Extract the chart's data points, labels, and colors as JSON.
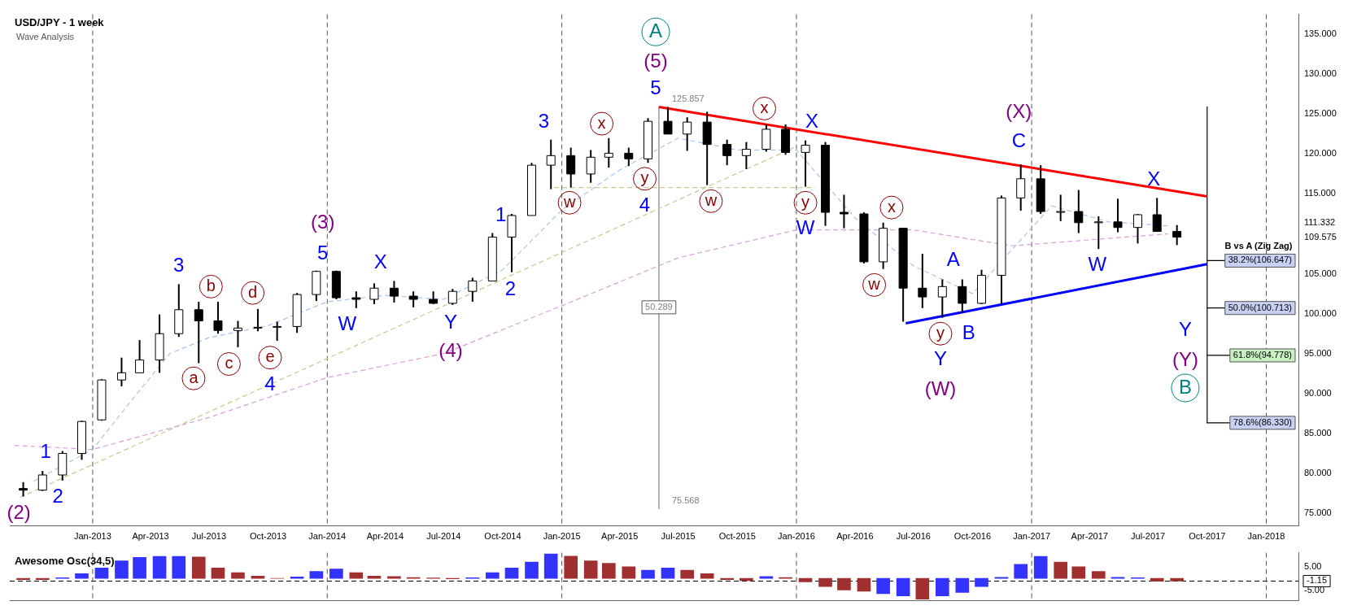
{
  "chart_data": [
    {
      "type": "candlestick",
      "title": "USD/JPY - 1 week",
      "subtitle": "Wave Analysis",
      "xlim": [
        "2012-08-25",
        "2018-02-20"
      ],
      "ylim": [
        73.4,
        137.5
      ],
      "xticks": [
        {
          "value": "2013-01-01",
          "label": "Jan-2013"
        },
        {
          "value": "2013-04-01",
          "label": "Apr-2013"
        },
        {
          "value": "2013-07-01",
          "label": "Jul-2013"
        },
        {
          "value": "2013-10-01",
          "label": "Oct-2013"
        },
        {
          "value": "2014-01-01",
          "label": "Jan-2014"
        },
        {
          "value": "2014-04-01",
          "label": "Apr-2014"
        },
        {
          "value": "2014-07-01",
          "label": "Jul-2014"
        },
        {
          "value": "2014-10-01",
          "label": "Oct-2014"
        },
        {
          "value": "2015-01-01",
          "label": "Jan-2015"
        },
        {
          "value": "2015-04-01",
          "label": "Apr-2015"
        },
        {
          "value": "2015-07-01",
          "label": "Jul-2015"
        },
        {
          "value": "2015-10-01",
          "label": "Oct-2015"
        },
        {
          "value": "2016-01-01",
          "label": "Jan-2016"
        },
        {
          "value": "2016-04-01",
          "label": "Apr-2016"
        },
        {
          "value": "2016-07-01",
          "label": "Jul-2016"
        },
        {
          "value": "2016-10-01",
          "label": "Oct-2016"
        },
        {
          "value": "2017-01-01",
          "label": "Jan-2017"
        },
        {
          "value": "2017-04-01",
          "label": "Apr-2017"
        },
        {
          "value": "2017-07-01",
          "label": "Jul-2017"
        },
        {
          "value": "2017-10-01",
          "label": "Oct-2017"
        },
        {
          "value": "2018-01-01",
          "label": "Jan-2018"
        }
      ],
      "yticks": [
        {
          "value": 75,
          "label": "75.000"
        },
        {
          "value": 80,
          "label": "80.000"
        },
        {
          "value": 85,
          "label": "85.000"
        },
        {
          "value": 90,
          "label": "90.000"
        },
        {
          "value": 95,
          "label": "95.000"
        },
        {
          "value": 100,
          "label": "100.000"
        },
        {
          "value": 105,
          "label": "105.000"
        },
        {
          "value": 109.575,
          "label": "109.575"
        },
        {
          "value": 111.332,
          "label": "111.332"
        },
        {
          "value": 115,
          "label": "115.000"
        },
        {
          "value": 120,
          "label": "120.000"
        },
        {
          "value": 125,
          "label": "125.000"
        },
        {
          "value": 130,
          "label": "130.000"
        },
        {
          "value": 135,
          "label": "135.000"
        }
      ],
      "grid": false,
      "legend": false,
      "marker": "none",
      "series": [
        {
          "type": "candlestick",
          "x": [
            "2012-09-15",
            "2012-10-15",
            "2012-11-15",
            "2012-12-15",
            "2013-01-15",
            "2013-02-15",
            "2013-03-15",
            "2013-04-15",
            "2013-05-15",
            "2013-06-15",
            "2013-07-15",
            "2013-08-15",
            "2013-09-15",
            "2013-10-15",
            "2013-11-15",
            "2013-12-15",
            "2014-01-15",
            "2014-02-15",
            "2014-03-15",
            "2014-04-15",
            "2014-05-15",
            "2014-06-15",
            "2014-07-15",
            "2014-08-15",
            "2014-09-15",
            "2014-10-15",
            "2014-11-15",
            "2014-12-15",
            "2015-01-15",
            "2015-02-15",
            "2015-03-15",
            "2015-04-15",
            "2015-05-15",
            "2015-06-15",
            "2015-07-15",
            "2015-08-15",
            "2015-09-15",
            "2015-10-15",
            "2015-11-15",
            "2015-12-15",
            "2016-01-15",
            "2016-02-15",
            "2016-03-15",
            "2016-04-15",
            "2016-05-15",
            "2016-06-15",
            "2016-07-15",
            "2016-08-15",
            "2016-09-15",
            "2016-10-15",
            "2016-11-15",
            "2016-12-15",
            "2017-01-15",
            "2017-02-15",
            "2017-03-15",
            "2017-04-15",
            "2017-05-15",
            "2017-06-15",
            "2017-07-15",
            "2017-08-15"
          ],
          "colors": [
            "#000000",
            "#ffffff",
            "#ffffff",
            "#ffffff",
            "#ffffff",
            "#ffffff",
            "#ffffff",
            "#ffffff",
            "#ffffff",
            "#000000",
            "#000000",
            "#ffffff",
            "#ffffff",
            "#ffffff",
            "#ffffff",
            "#ffffff",
            "#000000",
            "#000000",
            "#ffffff",
            "#000000",
            "#000000",
            "#000000",
            "#ffffff",
            "#ffffff",
            "#ffffff",
            "#ffffff",
            "#ffffff",
            "#ffffff",
            "#000000",
            "#ffffff",
            "#ffffff",
            "#000000",
            "#ffffff",
            "#000000",
            "#ffffff",
            "#000000",
            "#000000",
            "#ffffff",
            "#ffffff",
            "#000000",
            "#ffffff",
            "#000000",
            "#000000",
            "#000000",
            "#ffffff",
            "#000000",
            "#000000",
            "#ffffff",
            "#000000",
            "#ffffff",
            "#ffffff",
            "#ffffff",
            "#000000",
            "#ffffff",
            "#000000",
            "#ffffff",
            "#000000",
            "#ffffff",
            "#000000",
            "#000000"
          ],
          "ohlc": [
            [
              78.1,
              78.9,
              77.1,
              77.9
            ],
            [
              77.9,
              80.3,
              77.8,
              79.8
            ],
            [
              79.8,
              82.8,
              79.1,
              82.5
            ],
            [
              82.5,
              86.6,
              81.7,
              86.5
            ],
            [
              86.7,
              91.8,
              86.6,
              91.7
            ],
            [
              91.7,
              94.5,
              90.9,
              92.6
            ],
            [
              92.6,
              96.7,
              92.6,
              94.2
            ],
            [
              94.2,
              99.9,
              92.6,
              97.5
            ],
            [
              97.5,
              103.7,
              97.1,
              100.5
            ],
            [
              100.5,
              101.5,
              93.8,
              99.1
            ],
            [
              99.1,
              101.5,
              97.5,
              97.9
            ],
            [
              97.9,
              99.1,
              95.8,
              98.2
            ],
            [
              98.2,
              100.6,
              97.8,
              98.3
            ],
            [
              98.3,
              99.0,
              96.6,
              98.4
            ],
            [
              98.4,
              102.6,
              97.6,
              102.4
            ],
            [
              102.4,
              105.4,
              101.6,
              105.3
            ],
            [
              105.3,
              105.4,
              101.8,
              102.0
            ],
            [
              102.0,
              102.8,
              100.7,
              101.8
            ],
            [
              101.8,
              103.8,
              101.2,
              103.2
            ],
            [
              103.2,
              104.1,
              101.4,
              102.2
            ],
            [
              102.2,
              102.8,
              100.8,
              101.8
            ],
            [
              101.8,
              102.8,
              101.2,
              101.3
            ],
            [
              101.3,
              103.1,
              101.1,
              102.8
            ],
            [
              102.8,
              104.5,
              101.5,
              104.1
            ],
            [
              104.1,
              110.1,
              104.1,
              109.6
            ],
            [
              109.6,
              112.5,
              105.2,
              112.3
            ],
            [
              112.3,
              118.9,
              112.3,
              118.6
            ],
            [
              118.6,
              121.8,
              115.6,
              119.8
            ],
            [
              119.8,
              120.8,
              115.8,
              117.5
            ],
            [
              117.5,
              120.5,
              116.4,
              119.6
            ],
            [
              119.6,
              122.0,
              118.3,
              120.1
            ],
            [
              120.1,
              120.8,
              118.5,
              119.4
            ],
            [
              119.4,
              124.5,
              118.9,
              124.1
            ],
            [
              124.1,
              125.9,
              122.5,
              122.5
            ],
            [
              122.5,
              124.6,
              120.4,
              124.0
            ],
            [
              124.0,
              125.3,
              116.1,
              121.2
            ],
            [
              121.2,
              121.8,
              118.6,
              119.8
            ],
            [
              119.8,
              121.5,
              118.1,
              120.6
            ],
            [
              120.6,
              123.7,
              120.3,
              123.1
            ],
            [
              123.1,
              123.7,
              119.9,
              120.2
            ],
            [
              120.2,
              121.7,
              115.9,
              121.1
            ],
            [
              121.1,
              121.5,
              111.0,
              112.7
            ],
            [
              112.7,
              114.9,
              110.7,
              112.5
            ],
            [
              112.5,
              112.7,
              106.3,
              106.5
            ],
            [
              106.5,
              111.4,
              105.6,
              110.7
            ],
            [
              110.7,
              110.7,
              99.0,
              103.2
            ],
            [
              103.2,
              107.5,
              100.7,
              102.1
            ],
            [
              102.1,
              104.3,
              99.5,
              103.4
            ],
            [
              103.4,
              104.3,
              100.1,
              101.3
            ],
            [
              101.3,
              105.5,
              101.2,
              104.8
            ],
            [
              104.8,
              114.8,
              101.2,
              114.5
            ],
            [
              114.5,
              118.7,
              112.9,
              116.9
            ],
            [
              116.9,
              118.6,
              112.5,
              112.8
            ],
            [
              112.8,
              114.9,
              111.6,
              112.8
            ],
            [
              112.8,
              115.5,
              110.1,
              111.4
            ],
            [
              111.4,
              112.2,
              108.1,
              111.5
            ],
            [
              111.5,
              114.4,
              110.2,
              110.8
            ],
            [
              110.8,
              112.5,
              108.8,
              112.4
            ],
            [
              112.4,
              114.5,
              110.3,
              110.3
            ],
            [
              110.3,
              111.1,
              108.6,
              109.6
            ]
          ]
        },
        {
          "type": "line",
          "color": "#aac4f0",
          "line_style": "dashed",
          "x": [
            "2012-10-01",
            "2013-01-01",
            "2013-03-01",
            "2013-05-01",
            "2013-07-01",
            "2013-10-01",
            "2014-01-01",
            "2014-04-01",
            "2014-07-01",
            "2014-10-01",
            "2015-01-01",
            "2015-04-01",
            "2015-07-01",
            "2015-10-01",
            "2016-01-01",
            "2016-04-01",
            "2016-07-01",
            "2016-10-01",
            "2016-12-01",
            "2017-02-01",
            "2017-05-01",
            "2017-08-01"
          ],
          "values": [
            79,
            83,
            89,
            95,
            97,
            98.5,
            101.5,
            102.3,
            101.8,
            105.5,
            113,
            118,
            122,
            120.5,
            120.5,
            112,
            106,
            102.5,
            108,
            113.5,
            111.5,
            111
          ]
        },
        {
          "type": "line",
          "color": "#d8a0d8",
          "line_style": "dashed",
          "x": [
            "2012-09-01",
            "2013-01-01",
            "2013-07-01",
            "2014-01-01",
            "2014-07-01",
            "2015-01-01",
            "2015-07-01",
            "2016-01-01",
            "2016-07-01",
            "2016-12-01",
            "2017-08-01"
          ],
          "values": [
            83.5,
            83,
            87,
            92,
            95,
            101,
            107,
            110.5,
            110.5,
            108.5,
            110
          ]
        },
        {
          "type": "line",
          "color": "#c8c890",
          "line_style": "dashed",
          "x": [
            "2012-09-10",
            "2015-12-28"
          ],
          "values": [
            77,
            120.8
          ]
        },
        {
          "type": "line",
          "color": "#c8c890",
          "line_style": "dashed",
          "x": [
            "2014-12-20",
            "2016-01-30"
          ],
          "values": [
            115.8,
            115.8
          ]
        },
        {
          "type": "line",
          "color": "#ff0000",
          "line_style": "solid",
          "x": [
            "2015-06-01",
            "2017-10-01"
          ],
          "values": [
            125.9,
            114.7
          ]
        },
        {
          "type": "line",
          "color": "#0000ff",
          "line_style": "solid",
          "x": [
            "2016-06-19",
            "2017-10-01"
          ],
          "values": [
            98.8,
            106.2
          ]
        },
        {
          "type": "line",
          "color": "#808080",
          "line_style": "solid",
          "x": [
            "2015-06-01",
            "2015-06-01"
          ],
          "values": [
            125.857,
            75.568
          ]
        },
        {
          "type": "line",
          "color": "#000000",
          "line_style": "solid",
          "x": [
            "2017-10-01",
            "2017-10-01"
          ],
          "values": [
            125.9,
            86.33
          ]
        },
        {
          "type": "line",
          "color": "#000000",
          "line_style": "solid",
          "x": [
            "2017-10-01",
            "2017-11-25"
          ],
          "values": [
            106.647,
            106.647
          ]
        },
        {
          "type": "line",
          "color": "#000000",
          "line_style": "solid",
          "x": [
            "2017-10-01",
            "2017-11-25"
          ],
          "values": [
            100.713,
            100.713
          ]
        },
        {
          "type": "line",
          "color": "#000000",
          "line_style": "solid",
          "x": [
            "2017-10-01",
            "2017-11-25"
          ],
          "values": [
            94.778,
            94.778
          ]
        },
        {
          "type": "line",
          "color": "#000000",
          "line_style": "solid",
          "x": [
            "2017-10-01",
            "2017-11-25"
          ],
          "values": [
            86.33,
            86.33
          ]
        }
      ],
      "ref_lines": [
        {
          "axis": "x",
          "value": "2013-01-01",
          "color": "#555555",
          "line_style": "dashed"
        },
        {
          "axis": "x",
          "value": "2014-01-01",
          "color": "#555555",
          "line_style": "dashed"
        },
        {
          "axis": "x",
          "value": "2015-01-01",
          "color": "#555555",
          "line_style": "dashed"
        },
        {
          "axis": "x",
          "value": "2016-01-01",
          "color": "#555555",
          "line_style": "dashed"
        },
        {
          "axis": "x",
          "value": "2017-01-01",
          "color": "#555555",
          "line_style": "dashed"
        },
        {
          "axis": "x",
          "value": "2018-01-01",
          "color": "#555555",
          "line_style": "dashed"
        }
      ],
      "annotations": [
        "(2)",
        "1",
        "2",
        "3",
        "a",
        "b",
        "c",
        "d",
        "e",
        "4",
        "5",
        "(3)",
        "W",
        "X",
        "Y",
        "(4)",
        "1",
        "2",
        "3",
        "w",
        "x",
        "y",
        "4",
        "5",
        "(5)",
        "A",
        "w",
        "x",
        "X",
        "y",
        "W",
        "w",
        "x",
        "A",
        "y",
        "B",
        "Y",
        "(W)",
        "C",
        "(X)",
        "W",
        "X",
        "Y",
        "(Y)",
        "B",
        "50.289",
        "B vs A (Zig Zag)",
        {
          "text": "125.857",
          "x": "2015-06-01",
          "y": 125.857
        },
        {
          "text": "75.568",
          "x": "2015-06-01",
          "y": 75.568
        },
        {
          "text": "38.2%(106.647)",
          "x": "2017-11-25",
          "y": 106.647
        },
        {
          "text": "50.0%(100.713)",
          "x": "2017-11-25",
          "y": 100.713
        },
        {
          "text": "61.8%(94.778)",
          "x": "2017-11-25",
          "y": 94.778
        },
        {
          "text": "78.6%(86.330)",
          "x": "2017-11-25",
          "y": 86.33
        }
      ]
    },
    {
      "type": "bar",
      "title": "Awesome Osc(34,5)",
      "tick_labels": "y",
      "legend": false,
      "grid": false,
      "xlim": [
        "2012-08-25",
        "2018-02-20"
      ],
      "ylim": [
        -9.5,
        11
      ],
      "yticks": [
        {
          "value": 5,
          "label": "5.00"
        },
        {
          "value": -5,
          "label": "-5.00"
        }
      ],
      "x": [
        "2012-09-15",
        "2012-10-15",
        "2012-11-15",
        "2012-12-15",
        "2013-01-15",
        "2013-02-15",
        "2013-03-15",
        "2013-04-15",
        "2013-05-15",
        "2013-06-15",
        "2013-07-15",
        "2013-08-15",
        "2013-09-15",
        "2013-10-15",
        "2013-11-15",
        "2013-12-15",
        "2014-01-15",
        "2014-02-15",
        "2014-03-15",
        "2014-04-15",
        "2014-05-15",
        "2014-06-15",
        "2014-07-15",
        "2014-08-15",
        "2014-09-15",
        "2014-10-15",
        "2014-11-15",
        "2014-12-15",
        "2015-01-15",
        "2015-02-15",
        "2015-03-15",
        "2015-04-15",
        "2015-05-15",
        "2015-06-15",
        "2015-07-15",
        "2015-08-15",
        "2015-09-15",
        "2015-10-15",
        "2015-11-15",
        "2015-12-15",
        "2016-01-15",
        "2016-02-15",
        "2016-03-15",
        "2016-04-15",
        "2016-05-15",
        "2016-06-15",
        "2016-07-15",
        "2016-08-15",
        "2016-09-15",
        "2016-10-15",
        "2016-11-15",
        "2016-12-15",
        "2017-01-15",
        "2017-02-15",
        "2017-03-15",
        "2017-04-15",
        "2017-05-15",
        "2017-06-15",
        "2017-07-15",
        "2017-08-15"
      ],
      "values": [
        -0.5,
        -0.5,
        0.3,
        2,
        4.5,
        7.5,
        9,
        9.4,
        9.4,
        9.2,
        4.5,
        2.5,
        1,
        0,
        0.6,
        3,
        4,
        2.5,
        1,
        0.8,
        0.4,
        0.2,
        -0.2,
        0.3,
        2.5,
        4.5,
        7,
        10.5,
        9.5,
        7.5,
        6.5,
        5,
        3.5,
        4.5,
        3.5,
        2,
        -0.5,
        -1,
        0.8,
        0.4,
        -1.5,
        -3.5,
        -5,
        -5.5,
        -6.5,
        -7.5,
        -8.9,
        -7.5,
        -6,
        -3.5,
        0.5,
        6,
        9.4,
        7,
        5,
        3,
        0.5,
        0.3,
        -1.2,
        -1.15
      ],
      "colors": [
        "#a03030",
        "#a03030",
        "#3333ff",
        "#3333ff",
        "#3333ff",
        "#3333ff",
        "#3333ff",
        "#3333ff",
        "#3333ff",
        "#a03030",
        "#a03030",
        "#a03030",
        "#a03030",
        "#a03030",
        "#3333ff",
        "#3333ff",
        "#3333ff",
        "#a03030",
        "#a03030",
        "#a03030",
        "#a03030",
        "#a03030",
        "#a03030",
        "#3333ff",
        "#3333ff",
        "#3333ff",
        "#3333ff",
        "#3333ff",
        "#a03030",
        "#a03030",
        "#a03030",
        "#a03030",
        "#3333ff",
        "#3333ff",
        "#a03030",
        "#a03030",
        "#a03030",
        "#a03030",
        "#3333ff",
        "#a03030",
        "#a03030",
        "#a03030",
        "#a03030",
        "#a03030",
        "#3333ff",
        "#3333ff",
        "#a03030",
        "#3333ff",
        "#3333ff",
        "#3333ff",
        "#3333ff",
        "#3333ff",
        "#3333ff",
        "#a03030",
        "#a03030",
        "#a03030",
        "#3333ff",
        "#3333ff",
        "#a03030",
        "#a03030"
      ],
      "ref_lines": [
        {
          "axis": "y",
          "value": -1.15,
          "label": "-1.15",
          "color": "#000000",
          "line_style": "dashed"
        },
        {
          "axis": "x",
          "value": "2013-01-01",
          "color": "#555555",
          "line_style": "dashed"
        },
        {
          "axis": "x",
          "value": "2014-01-01",
          "color": "#555555",
          "line_style": "dashed"
        },
        {
          "axis": "x",
          "value": "2015-01-01",
          "color": "#555555",
          "line_style": "dashed"
        },
        {
          "axis": "x",
          "value": "2016-01-01",
          "color": "#555555",
          "line_style": "dashed"
        },
        {
          "axis": "x",
          "value": "2017-01-01",
          "color": "#555555",
          "line_style": "dashed"
        },
        {
          "axis": "x",
          "value": "2018-01-01",
          "color": "#555555",
          "line_style": "dashed"
        }
      ]
    }
  ]
}
